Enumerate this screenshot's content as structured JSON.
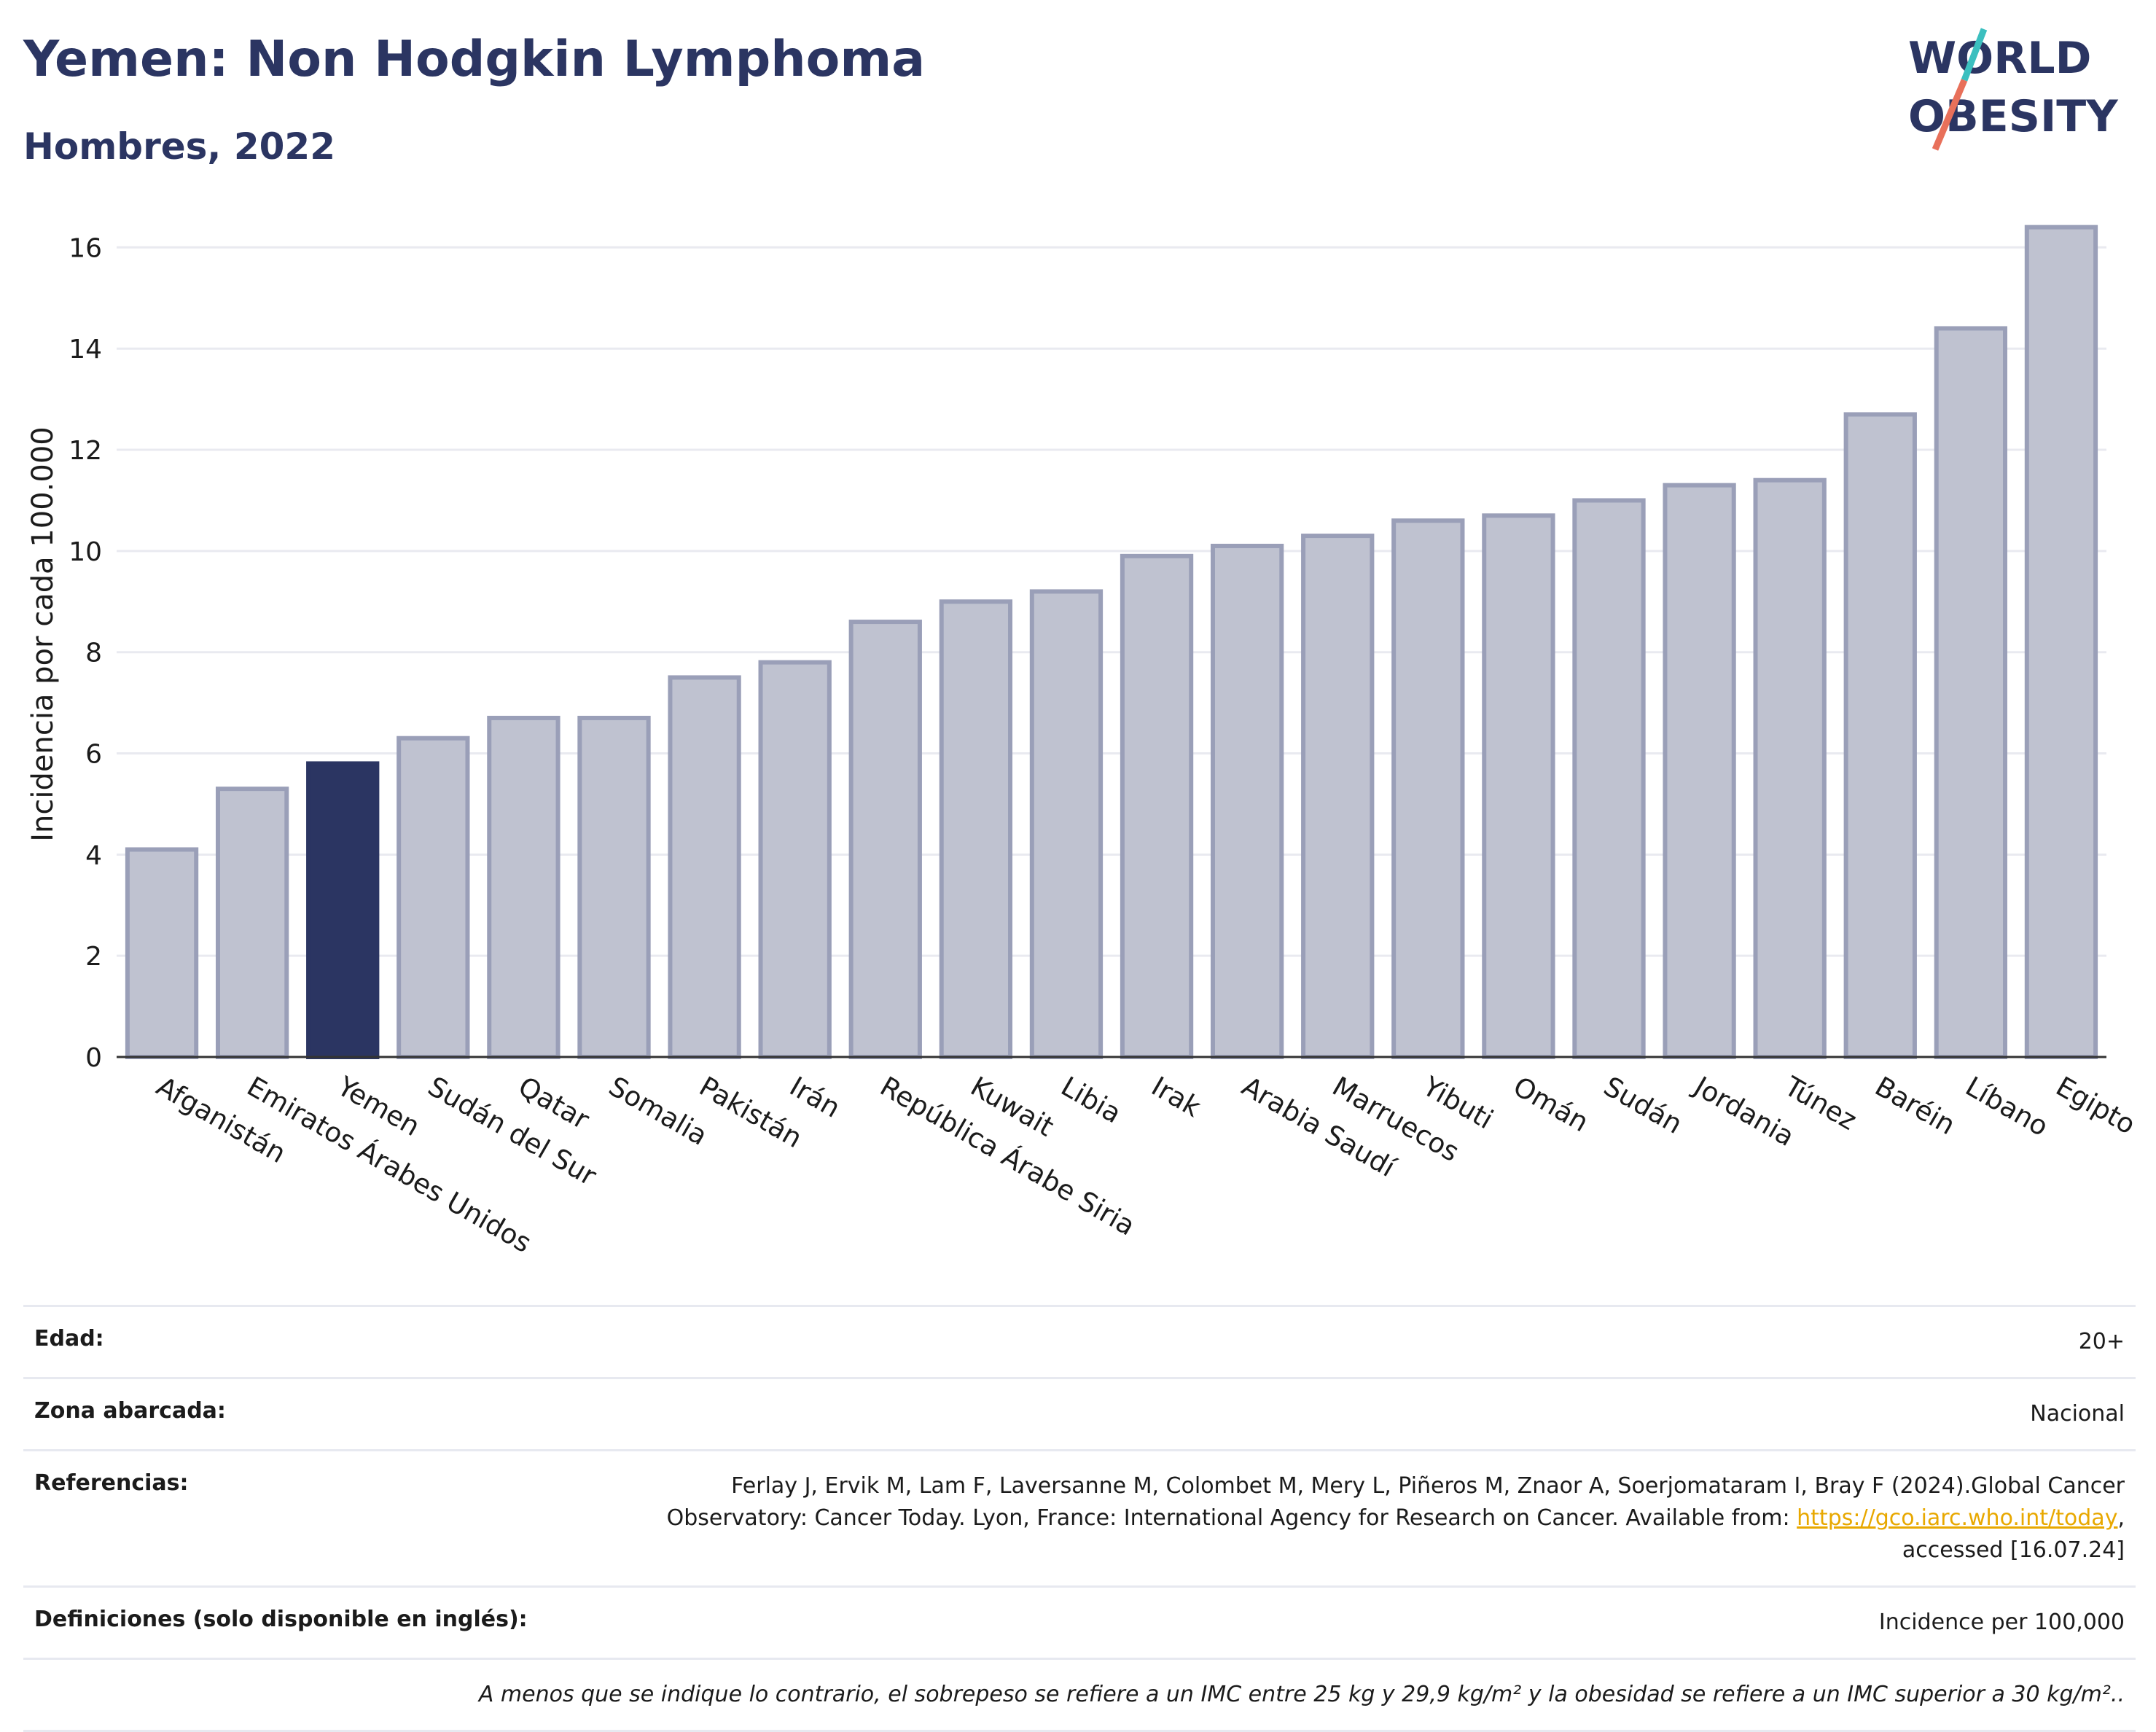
{
  "header": {
    "title": "Yemen: Non Hodgkin Lymphoma",
    "subtitle": "Hombres, 2022",
    "logo_text": "WORLD OBESITY"
  },
  "colors": {
    "bar": "#bfc2d0",
    "bar_border": "#9a9fb8",
    "highlight": "#2b3562",
    "grid": "#e9eaf0",
    "title": "#2b3562",
    "logo_teal": "#3bbfbf",
    "logo_coral": "#e8705a"
  },
  "chart_data": {
    "type": "bar",
    "title": "Yemen: Non Hodgkin Lymphoma",
    "subtitle": "Hombres, 2022",
    "ylabel": "Incidencia por cada 100.000",
    "xlabel": "",
    "ylim": [
      0,
      17
    ],
    "yticks": [
      0,
      2,
      4,
      6,
      8,
      10,
      12,
      14,
      16
    ],
    "grid": true,
    "highlight_category": "Yemen",
    "categories": [
      "Afganistán",
      "Emiratos Árabes Unidos",
      "Yemen",
      "Sudán del Sur",
      "Qatar",
      "Somalia",
      "Pakistán",
      "Irán",
      "República Árabe Siria",
      "Kuwait",
      "Libia",
      "Irak",
      "Arabia Saudí",
      "Marruecos",
      "Yibuti",
      "Omán",
      "Sudán",
      "Jordania",
      "Túnez",
      "Baréin",
      "Líbano",
      "Egipto"
    ],
    "values": [
      4.1,
      5.3,
      5.8,
      6.3,
      6.7,
      6.7,
      7.5,
      7.8,
      8.6,
      9.0,
      9.2,
      9.9,
      10.1,
      10.3,
      10.6,
      10.7,
      11.0,
      11.3,
      11.4,
      12.7,
      14.4,
      16.4
    ]
  },
  "info": {
    "age_label": "Edad:",
    "age_value": "20+",
    "zone_label": "Zona abarcada:",
    "zone_value": "Nacional",
    "refs_label": "Referencias:",
    "refs_line1": "Ferlay J, Ervik M, Lam F, Laversanne M, Colombet M, Mery L, Piñeros M, Znaor A, Soerjomataram I, Bray F (2024).Global Cancer",
    "refs_line2": "Observatory: Cancer Today. Lyon, France: International Agency for Research on Cancer. Available from:",
    "refs_link": "https://gco.iarc.who.int/today",
    "refs_line3": "accessed [16.07.24]",
    "defs_label": "Definiciones (solo disponible en inglés):",
    "defs_value": "Incidence per 100,000",
    "note": "A menos que se indique lo contrario, el sobrepeso se refiere a un IMC entre 25 kg y 29,9 kg/m² y la obesidad se refiere a un IMC superior a 30 kg/m².."
  }
}
